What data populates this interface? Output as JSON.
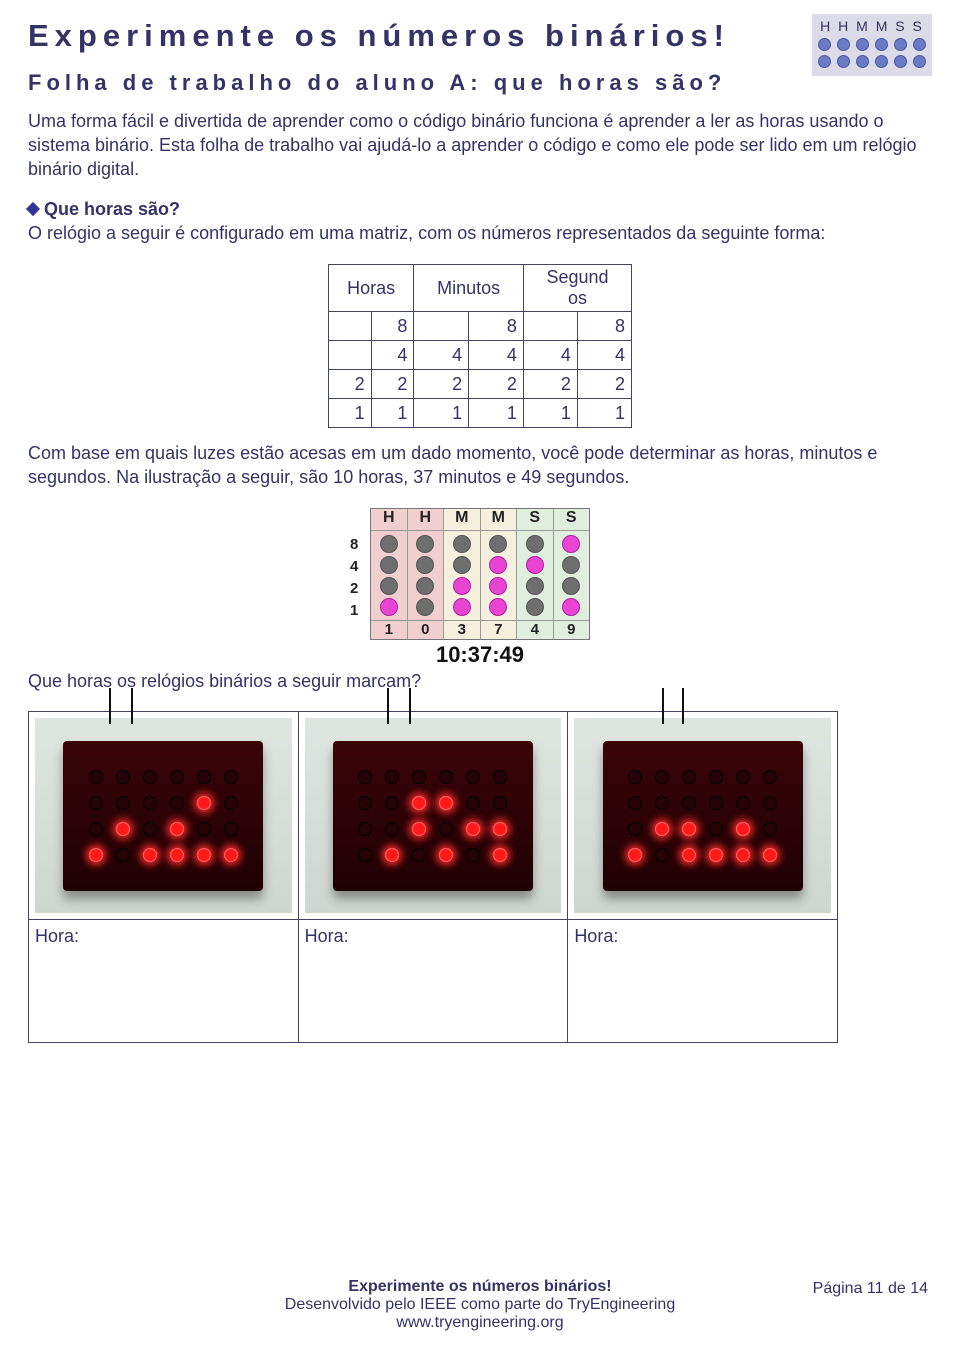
{
  "title": "Experimente os números binários!",
  "subtitle": "Folha de trabalho do aluno A: que horas são?",
  "logo": {
    "labels": [
      "H",
      "H",
      "M",
      "M",
      "S",
      "S"
    ],
    "dot_color_on": "#6b7ac5",
    "rows": [
      [
        1,
        1,
        1,
        1,
        1,
        1
      ],
      [
        1,
        1,
        1,
        1,
        1,
        1
      ]
    ]
  },
  "intro_text": "Uma forma fácil e divertida de aprender como o código binário funciona é aprender a ler as horas usando o sistema binário. Esta folha de trabalho vai ajudá-lo a aprender o código e como ele pode ser lido em um relógio binário digital.",
  "section_heading": "Que horas são?",
  "matrix_lead": "O relógio a seguir é configurado em uma matriz, com os números representados da seguinte forma:",
  "matrix": {
    "headers": [
      "Horas",
      "Minutos",
      "Segundos"
    ],
    "rows": [
      [
        "",
        "8",
        "",
        "8",
        "",
        "8"
      ],
      [
        "",
        "4",
        "4",
        "4",
        "4",
        "4"
      ],
      [
        "2",
        "2",
        "2",
        "2",
        "2",
        "2"
      ],
      [
        "1",
        "1",
        "1",
        "1",
        "1",
        "1"
      ]
    ]
  },
  "after_matrix": "Com base em quais luzes estão acesas em um dado momento, você pode determinar as horas, minutos e segundos.  Na ilustração a seguir, são 10 horas, 37 minutos e 49 segundos.",
  "clock": {
    "col_labels": [
      "H",
      "H",
      "M",
      "M",
      "S",
      "S"
    ],
    "row_labels": [
      "8",
      "4",
      "2",
      "1"
    ],
    "col_classes": [
      "h",
      "h",
      "m",
      "m",
      "s",
      "s"
    ],
    "states": [
      [
        0,
        0,
        0,
        0,
        0,
        1
      ],
      [
        0,
        0,
        0,
        1,
        1,
        0
      ],
      [
        0,
        0,
        1,
        1,
        0,
        0
      ],
      [
        1,
        0,
        1,
        1,
        0,
        1
      ]
    ],
    "foot": [
      "1",
      "0",
      "3",
      "7",
      "4",
      "9"
    ],
    "readout": "10:37:49"
  },
  "question": "Que horas os relógios binários a seguir marcam?",
  "photo_clocks": [
    {
      "wires": [
        74,
        96
      ],
      "leds": [
        [
          0,
          0,
          0,
          0,
          0,
          0
        ],
        [
          0,
          0,
          0,
          0,
          1,
          0
        ],
        [
          0,
          1,
          0,
          1,
          0,
          0
        ],
        [
          1,
          0,
          1,
          1,
          1,
          1
        ]
      ]
    },
    {
      "wires": [
        82,
        104
      ],
      "leds": [
        [
          0,
          0,
          0,
          0,
          0,
          0
        ],
        [
          0,
          0,
          1,
          1,
          0,
          0
        ],
        [
          0,
          0,
          1,
          0,
          1,
          1
        ],
        [
          0,
          1,
          0,
          1,
          0,
          1
        ]
      ]
    },
    {
      "wires": [
        88,
        108
      ],
      "leds": [
        [
          0,
          0,
          0,
          0,
          0,
          0
        ],
        [
          0,
          0,
          0,
          0,
          0,
          0
        ],
        [
          0,
          1,
          1,
          0,
          1,
          0
        ],
        [
          1,
          0,
          1,
          1,
          1,
          1
        ]
      ]
    }
  ],
  "hora_label": "Hora:",
  "footer": {
    "line1": "Experimente os números binários!",
    "line2": "Desenvolvido pelo IEEE como parte do TryEngineering",
    "line3": "www.tryengineering.org",
    "page": "Página 11 de 14"
  }
}
